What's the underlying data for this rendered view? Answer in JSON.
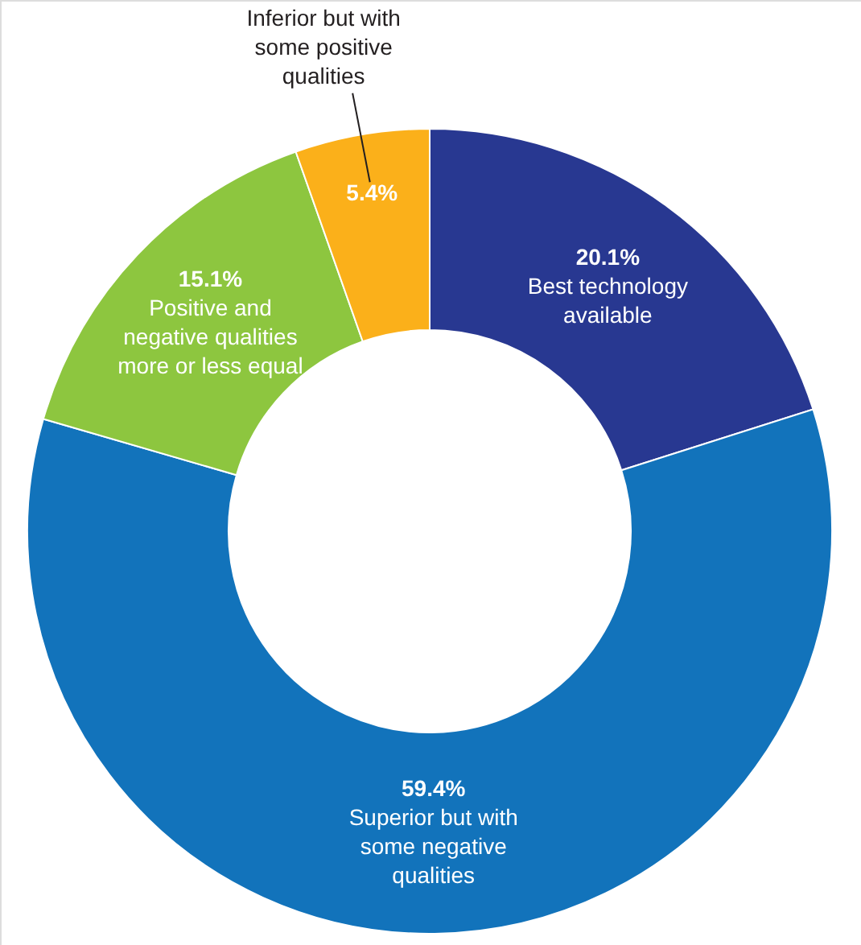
{
  "chart_data": {
    "type": "donut",
    "categories": [
      "Best technology available",
      "Superior but with some negative qualities",
      "Positive and negative qualities more or less equal",
      "Inferior but with some positive qualities"
    ],
    "values": [
      20.1,
      59.4,
      15.1,
      5.4
    ],
    "colors": [
      "#283891",
      "#1273bb",
      "#8dc63f",
      "#fbb01a"
    ],
    "value_labels": [
      "20.1%",
      "59.4%",
      "15.1%",
      "5.4%"
    ]
  }
}
